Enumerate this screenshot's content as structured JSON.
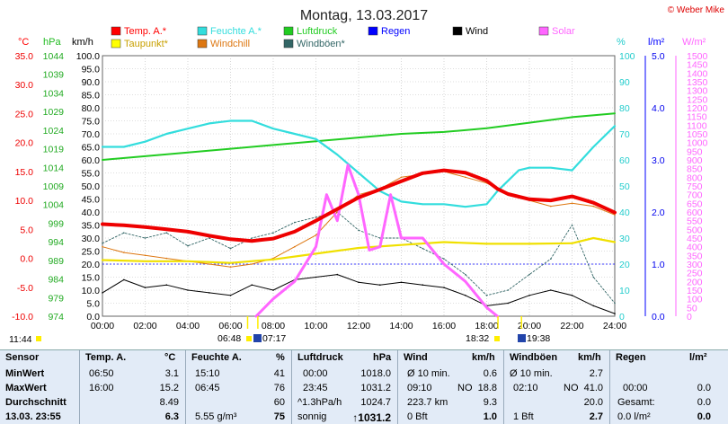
{
  "title": "Montag, 13.03.2017",
  "copyright": "© Weber Mike",
  "legend": [
    {
      "name": "Temp. A.*",
      "color": "#ff0000"
    },
    {
      "name": "Feuchte A.*",
      "color": "#33dddd"
    },
    {
      "name": "Luftdruck",
      "color": "#22cc22"
    },
    {
      "name": "Regen",
      "color": "#0000ff"
    },
    {
      "name": "Wind",
      "color": "#000000"
    },
    {
      "name": "Solar",
      "color": "#ff66ff"
    },
    {
      "name": "Taupunkt*",
      "color": "#ffff00"
    },
    {
      "name": "Windchill",
      "color": "#dd7711"
    },
    {
      "name": "Windböen*",
      "color": "#336666"
    }
  ],
  "axis_units": {
    "temp": "°C",
    "pressure": "hPa",
    "wind": "km/h",
    "humidity": "%",
    "rain": "l/m²",
    "solar": "W/m²"
  },
  "axes": {
    "temp": [
      "35.0",
      "30.0",
      "25.0",
      "20.0",
      "15.0",
      "10.0",
      "5.0",
      "0.0",
      "-5.0",
      "-10.0"
    ],
    "pressure": [
      "1044",
      "1039",
      "1034",
      "1029",
      "1024",
      "1019",
      "1014",
      "1009",
      "1004",
      "999",
      "994",
      "989",
      "984",
      "979",
      "974"
    ],
    "wind": [
      "100.0",
      "95.0",
      "90.0",
      "85.0",
      "80.0",
      "75.0",
      "70.0",
      "65.0",
      "60.0",
      "55.0",
      "50.0",
      "45.0",
      "40.0",
      "35.0",
      "30.0",
      "25.0",
      "20.0",
      "15.0",
      "10.0",
      "5.0",
      "0.0"
    ],
    "humidity": [
      "100",
      "90",
      "80",
      "70",
      "60",
      "50",
      "40",
      "30",
      "20",
      "10",
      "0"
    ],
    "rain": [
      "5.0",
      "4.0",
      "3.0",
      "2.0",
      "1.0",
      "0.0"
    ],
    "solar": [
      "1500",
      "1450",
      "1400",
      "1350",
      "1300",
      "1250",
      "1200",
      "1150",
      "1100",
      "1050",
      "1000",
      "950",
      "900",
      "850",
      "800",
      "750",
      "700",
      "650",
      "600",
      "550",
      "500",
      "450",
      "400",
      "350",
      "300",
      "250",
      "200",
      "150",
      "100",
      "50",
      "0"
    ],
    "time": [
      "00:00",
      "02:00",
      "04:00",
      "06:00",
      "08:00",
      "10:00",
      "12:00",
      "14:00",
      "16:00",
      "18:00",
      "20:00",
      "22:00",
      "24:00"
    ]
  },
  "sun_marks": {
    "left": "11:44",
    "sunrise_a": "06:48",
    "sunrise_b": "07:17",
    "sunset_a": "18:32",
    "sunset_b": "19:38"
  },
  "chart_data": {
    "type": "line",
    "title": "Montag, 13.03.2017",
    "x_unit": "hour",
    "xlim": [
      0,
      24
    ],
    "series": [
      {
        "name": "Temp. A.*",
        "axis": "temp",
        "x": [
          0,
          1,
          2,
          3,
          4,
          5,
          6,
          7,
          7.5,
          8,
          9,
          10,
          11,
          12,
          13,
          14,
          15,
          16,
          17,
          18,
          18.5,
          19,
          20,
          21,
          22,
          23,
          24
        ],
        "y": [
          5.9,
          5.7,
          5.4,
          5,
          4.6,
          3.9,
          3.3,
          3,
          3.2,
          3.4,
          4.6,
          6.5,
          8.5,
          10.5,
          11.9,
          13.3,
          14.7,
          15.2,
          14.8,
          13.4,
          12,
          11.1,
          10.2,
          10,
          10.7,
          9.6,
          7.9
        ]
      },
      {
        "name": "Feuchte A.*",
        "axis": "humidity",
        "x": [
          0,
          1,
          2,
          3,
          4,
          5,
          6,
          7,
          8,
          9,
          10,
          11,
          12,
          13,
          14,
          15,
          16,
          17,
          18,
          18.5,
          19,
          19.5,
          20,
          21,
          22,
          23,
          24
        ],
        "y": [
          65,
          65,
          67,
          70,
          72,
          74,
          75,
          75,
          72,
          70,
          68,
          62,
          55,
          48,
          44,
          43,
          43,
          42,
          43,
          48,
          52,
          56,
          57,
          57,
          56,
          65,
          73
        ]
      },
      {
        "name": "Luftdruck",
        "axis": "pressure",
        "x": [
          0,
          2,
          4,
          6,
          8,
          10,
          12,
          14,
          16,
          18,
          20,
          22,
          24
        ],
        "y": [
          1016,
          1017,
          1018,
          1019,
          1020,
          1021,
          1022,
          1023,
          1023.5,
          1024.5,
          1026,
          1027.5,
          1028.5
        ]
      },
      {
        "name": "Wind",
        "axis": "wind",
        "x": [
          0,
          1,
          2,
          3,
          4,
          5,
          6,
          7,
          8,
          9,
          10,
          11,
          12,
          13,
          14,
          15,
          16,
          17,
          18,
          19,
          20,
          21,
          22,
          23,
          24
        ],
        "y": [
          9,
          14,
          11,
          12,
          10,
          9,
          8,
          12,
          10,
          14,
          15,
          16,
          13,
          12,
          13,
          12,
          11,
          8,
          4,
          5,
          8,
          10,
          8,
          4,
          1
        ]
      },
      {
        "name": "Solar",
        "axis": "solar",
        "x": [
          7.2,
          8,
          9,
          10,
          10.5,
          11,
          11.5,
          12,
          12.5,
          13,
          13.5,
          14,
          15,
          16,
          17,
          18,
          18.5
        ],
        "y": [
          0,
          100,
          200,
          400,
          700,
          550,
          870,
          700,
          380,
          400,
          700,
          450,
          450,
          300,
          200,
          50,
          0
        ]
      },
      {
        "name": "Taupunkt*",
        "axis": "temp",
        "x": [
          0,
          2,
          4,
          6,
          8,
          10,
          12,
          14,
          16,
          18,
          20,
          22,
          23,
          24
        ],
        "y": [
          -0.3,
          -0.5,
          -0.5,
          -0.8,
          -0.2,
          0.8,
          1.8,
          2.3,
          2.8,
          2.5,
          2.5,
          2.6,
          3.5,
          2.8
        ]
      },
      {
        "name": "Windchill",
        "axis": "temp",
        "x": [
          0,
          1,
          2,
          3,
          4,
          5,
          6,
          7,
          8,
          9,
          10,
          11,
          12,
          13,
          14,
          15,
          16,
          17,
          18,
          19,
          20,
          21,
          22,
          23,
          24
        ],
        "y": [
          2,
          1,
          0.5,
          0,
          -0.5,
          -1,
          -1.5,
          -1,
          0,
          2,
          4,
          8,
          11,
          12,
          14,
          14.5,
          15,
          14,
          13,
          11,
          10,
          9,
          9.5,
          9,
          7.5
        ]
      },
      {
        "name": "Windböen*",
        "axis": "wind",
        "x": [
          0,
          1,
          2,
          3,
          4,
          5,
          6,
          7,
          8,
          9,
          10,
          11,
          12,
          13,
          14,
          15,
          16,
          17,
          18,
          19,
          20,
          21,
          22,
          23,
          24
        ],
        "y": [
          28,
          32,
          30,
          32,
          27,
          30,
          26,
          30,
          32,
          36,
          38,
          40,
          33,
          30,
          30,
          26,
          22,
          16,
          8,
          10,
          16,
          22,
          35,
          15,
          5
        ]
      }
    ],
    "regen_sum_l_m2": 0.0
  },
  "stats": {
    "sensor": {
      "header": "Sensor",
      "rows": [
        "MinWert",
        "MaxWert",
        "Durchschnitt",
        "13.03. 23:55"
      ]
    },
    "temp": {
      "header": "Temp. A.",
      "unit": "°C",
      "rows": [
        [
          "06:50",
          "3.1"
        ],
        [
          "16:00",
          "15.2"
        ],
        [
          "",
          "8.49"
        ],
        [
          "",
          "6.3"
        ]
      ]
    },
    "feuchte": {
      "header": "Feuchte A.",
      "unit": "%",
      "rows": [
        [
          "15:10",
          "41"
        ],
        [
          "06:45",
          "76"
        ],
        [
          "",
          "60"
        ],
        [
          "5.55 g/m³",
          "75"
        ]
      ]
    },
    "luftdruck": {
      "header": "Luftdruck",
      "unit": "hPa",
      "rows": [
        [
          "00:00",
          "1018.0"
        ],
        [
          "23:45",
          "1031.2"
        ],
        [
          "^1.3hPa/h",
          "1024.7"
        ],
        [
          "sonnig",
          "↑1031.2"
        ]
      ]
    },
    "wind": {
      "header": "Wind",
      "unit": "km/h",
      "rows": [
        [
          "Ø 10 min.",
          "",
          "0.6"
        ],
        [
          "09:10",
          "NO",
          "18.8"
        ],
        [
          "223.7 km",
          "",
          "9.3"
        ],
        [
          "0 Bft",
          "",
          "1.0"
        ]
      ]
    },
    "windboeen": {
      "header": "Windböen",
      "unit": "km/h",
      "rows": [
        [
          "Ø 10 min.",
          "",
          "2.7"
        ],
        [
          "02:10",
          "NO",
          "41.0"
        ],
        [
          "",
          "",
          "20.0"
        ],
        [
          "1 Bft",
          "",
          "2.7"
        ]
      ]
    },
    "regen": {
      "header": "Regen",
      "unit": "l/m²",
      "rows": [
        [
          "",
          ""
        ],
        [
          "00:00",
          "0.0"
        ],
        [
          "Gesamt:",
          "0.0"
        ],
        [
          "0.0 l/m²",
          "0.0"
        ]
      ]
    }
  }
}
